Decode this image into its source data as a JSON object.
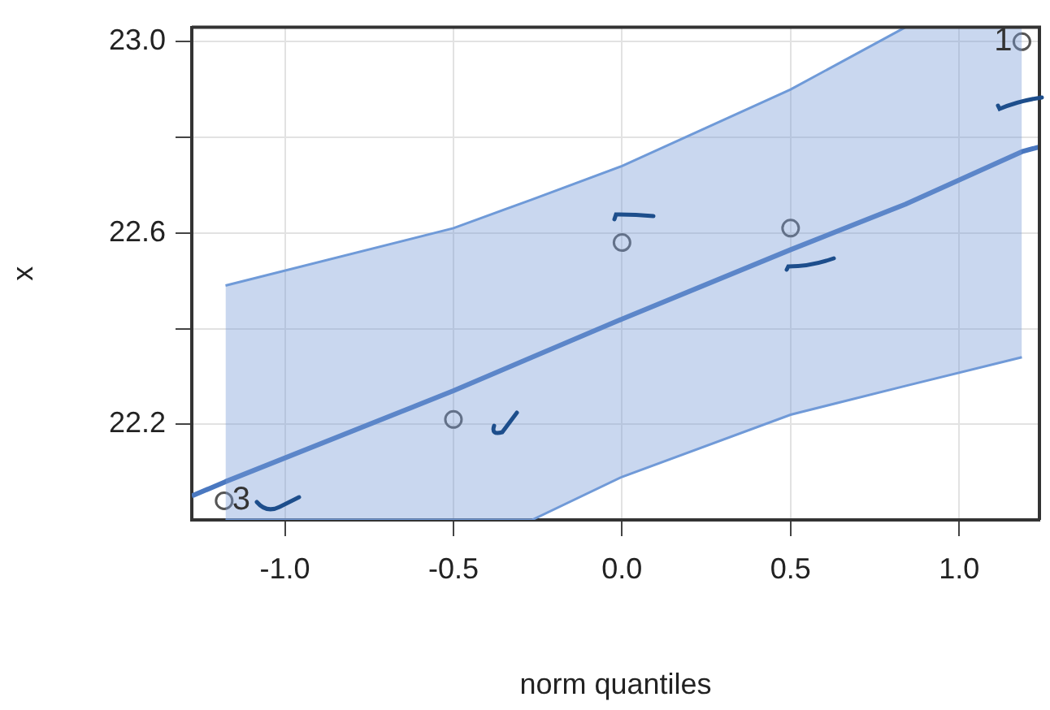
{
  "chart_data": {
    "type": "scatter",
    "xlabel": "norm quantiles",
    "ylabel": "x",
    "xlim": [
      -1.276,
      1.238
    ],
    "ylim": [
      22.0,
      23.03
    ],
    "xticks": [
      {
        "value": -1.0,
        "label": "-1.0"
      },
      -0.5,
      {
        "value": 0,
        "label": "0.0"
      },
      0.5,
      {
        "value": 1.0,
        "label": "1.0"
      }
    ],
    "yticks": [
      {
        "value": 22.2,
        "label": "22.2"
      },
      {
        "value": 22.4,
        "label": null
      },
      {
        "value": 22.6,
        "label": "22.6"
      },
      {
        "value": 22.8,
        "label": null
      },
      {
        "value": 23.0,
        "label": "23.0"
      }
    ],
    "grid": true,
    "legend": false,
    "series": [
      {
        "type": "line",
        "marker": "none",
        "color": "#4a78c0",
        "x": [
          -1.276,
          -1.176,
          -0.5,
          -0.267,
          0,
          0.5,
          0.84,
          1.186,
          1.238
        ],
        "values": [
          22.05,
          22.08,
          22.27,
          22.34,
          22.42,
          22.565,
          22.66,
          22.77,
          22.78
        ],
        "lower": [
          null,
          22.0,
          22.0,
          22.0,
          22.09,
          22.22,
          22.28,
          22.34,
          null
        ],
        "upper": [
          null,
          22.49,
          22.61,
          22.67,
          22.74,
          22.9,
          23.03,
          23.03,
          null
        ]
      },
      {
        "marker": "circle",
        "color": "#555555",
        "x": [
          -1.18,
          -0.5,
          0,
          0.5,
          1.186
        ],
        "values": [
          22.04,
          22.21,
          22.58,
          22.61,
          23.0
        ]
      }
    ],
    "annotations": [
      {
        "text": "3",
        "x": -1.18,
        "y": 22.04
      },
      {
        "text": "1",
        "x": 1.186,
        "y": 23.0
      }
    ]
  }
}
